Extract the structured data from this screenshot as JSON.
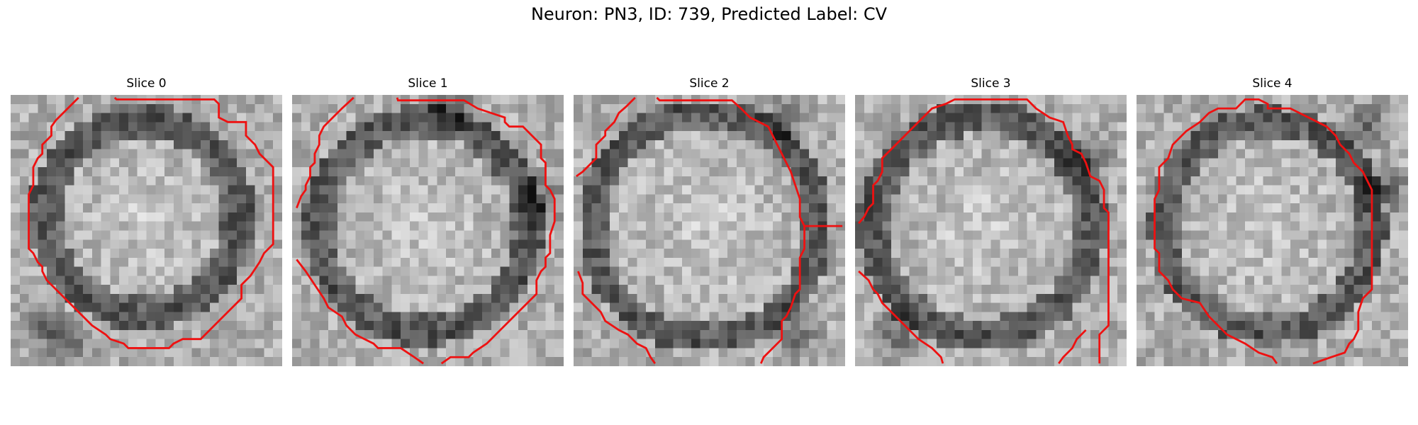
{
  "figure": {
    "title": "Neuron: PN3, ID: 739, Predicted Label: CV"
  },
  "panels": [
    {
      "title": "Slice 0"
    },
    {
      "title": "Slice 1"
    },
    {
      "title": "Slice 2"
    },
    {
      "title": "Slice 3"
    },
    {
      "title": "Slice 4"
    }
  ],
  "colors": {
    "contour": "#ee1111",
    "background": "#ffffff"
  }
}
